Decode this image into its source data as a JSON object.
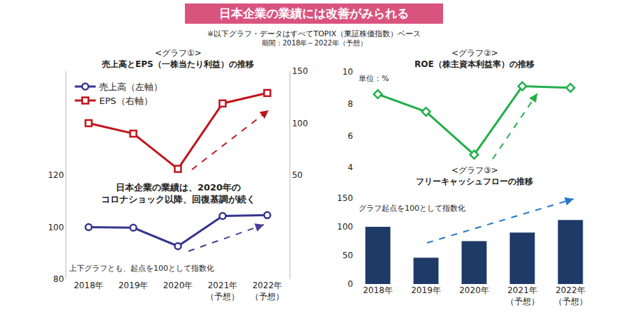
{
  "header": {
    "title": "日本企業の業績には改善がみられる",
    "notes": [
      "※以下グラフ・データはすべてTOPIX（東証株価指数）ベース",
      "期間：2018年～2022年（予想）"
    ]
  },
  "chart_data": [
    {
      "type": "line",
      "title": "<グラフ①>",
      "subtitle": "売上高とEPS（一株当たり利益）の推移",
      "categories": [
        "2018年",
        "2019年",
        "2020年",
        "2021年\n（予想）",
        "2022年\n（予想）"
      ],
      "series": [
        {
          "name": "売上高（左軸）",
          "color": "#34348f",
          "marker": "circle",
          "values": [
            100,
            99.8,
            92.7,
            104.3,
            104.6
          ]
        },
        {
          "name": "EPS（右軸）",
          "color": "#c0141b",
          "marker": "square",
          "axis": "y2",
          "values": [
            100,
            90,
            56,
            119,
            129
          ]
        }
      ],
      "ylim": [
        80,
        160
      ],
      "yticks": [
        80,
        100,
        120
      ],
      "y2lim": [
        -50,
        150
      ],
      "y2ticks": [
        50,
        100,
        150
      ],
      "legend": "upper left",
      "grid": false,
      "annotations": [
        "日本企業の業績は、2020年の\nコロナショック以降、回復基調が続く",
        "上下グラフとも、起点を100として指数化"
      ]
    },
    {
      "type": "line",
      "title": "<グラフ②>",
      "subtitle": "ROE（株主資本利益率）の推移",
      "categories": [
        "2018年",
        "2019年",
        "2020年",
        "2021年\n（予想）",
        "2022年\n（予想）"
      ],
      "values": [
        8.6,
        7.5,
        4.8,
        9.1,
        9.0
      ],
      "color": "#22b04b",
      "marker": "diamond",
      "ylim": [
        4,
        10
      ],
      "yticks": [
        4,
        6,
        8,
        10
      ],
      "tick_labels": "y",
      "grid": false,
      "annotations": [
        "単位：%"
      ]
    },
    {
      "type": "bar",
      "title": "<グラフ③>",
      "subtitle": "フリーキャッシュフローの推移",
      "categories": [
        "2018年",
        "2019年",
        "2020年",
        "2021年\n（予想）",
        "2022年\n（予想）"
      ],
      "values": [
        100,
        46,
        75,
        90,
        112
      ],
      "color": "#1e3a66",
      "ylim": [
        0,
        150
      ],
      "yticks": [
        0,
        50,
        100,
        150
      ],
      "grid": false,
      "annotations": [
        "グラフ起点を100として指数化"
      ]
    }
  ]
}
